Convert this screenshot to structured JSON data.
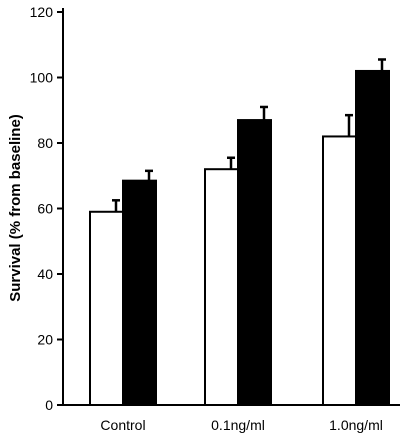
{
  "chart_data": {
    "type": "bar",
    "title": "",
    "xlabel": "",
    "ylabel": "Survival (% from baseline)",
    "ylim": [
      0,
      120
    ],
    "yticks": [
      0,
      20,
      40,
      60,
      80,
      100,
      120
    ],
    "categories": [
      "Control",
      "0.1ng/ml",
      "1.0ng/ml"
    ],
    "series": [
      {
        "fill": "#ffffff",
        "values": [
          59,
          72,
          82
        ],
        "errors": [
          3.5,
          3.5,
          6.5
        ]
      },
      {
        "fill": "#000000",
        "values": [
          68.5,
          87,
          102
        ],
        "errors": [
          3,
          4,
          3.5
        ]
      }
    ],
    "grid": false,
    "legend": "none"
  }
}
